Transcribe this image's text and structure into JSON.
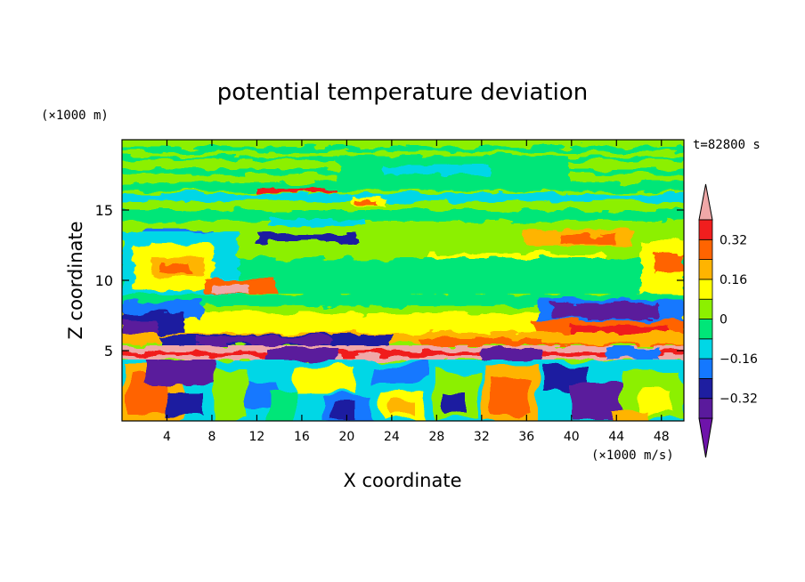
{
  "chart_data": {
    "type": "heatmap",
    "title": "potential temperature deviation",
    "xlabel": "X coordinate",
    "ylabel": "Z coordinate",
    "x_unit": "(×1000 m/s)",
    "y_unit": "(×1000 m)",
    "time_label": "t=82800 s",
    "xlim": [
      0,
      50
    ],
    "ylim": [
      0,
      20
    ],
    "x_ticks": [
      4,
      8,
      12,
      16,
      20,
      24,
      28,
      32,
      36,
      40,
      44,
      48
    ],
    "y_ticks": [
      5,
      10,
      15
    ],
    "colorbar": {
      "levels": [
        -0.4,
        -0.32,
        -0.24,
        -0.16,
        -0.08,
        0,
        0.08,
        0.16,
        0.24,
        0.32,
        0.4
      ],
      "labels": [
        "0.32",
        "0.16",
        "0",
        "−0.16",
        "−0.32"
      ],
      "label_values": [
        0.32,
        0.16,
        0,
        -0.16,
        -0.32
      ],
      "colors": [
        "#5a1a9c",
        "#1e1ea0",
        "#1478ff",
        "#00d7e6",
        "#00e678",
        "#8cf000",
        "#ffff00",
        "#ffb400",
        "#ff6400",
        "#f01e1e"
      ],
      "under_color": "#6e14aa",
      "over_color": "#f0a8a8"
    }
  }
}
